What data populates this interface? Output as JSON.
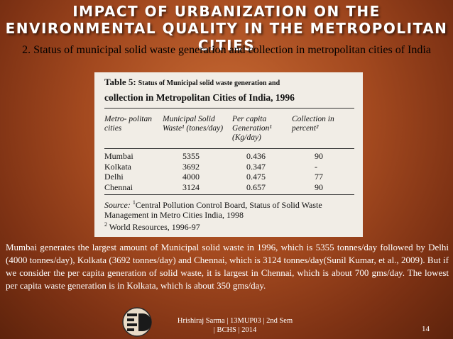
{
  "slide": {
    "title": "IMPACT OF URBANIZATION ON THE ENVIRONMENTAL QUALITY IN THE METROPOLITAN CITIES",
    "subtitle": "2. Status of municipal solid waste generation and collection in metropolitan cities of India"
  },
  "table": {
    "caption_label": "Table 5:",
    "caption_line1_rest": "Status of Municipal solid waste generation and",
    "caption_line2": "collection in Metropolitan Cities of India, 1996",
    "headers": [
      "Metro- politan cities",
      "Municipal Solid Waste¹ (tones/day)",
      "Per capita Generation¹ (Kg/day)",
      "Collection in percent²"
    ],
    "rows": [
      {
        "city": "Mumbai",
        "waste": "5355",
        "per_capita": "0.436",
        "collection": "90"
      },
      {
        "city": "Kolkata",
        "waste": "3692",
        "per_capita": "0.347",
        "collection": "-"
      },
      {
        "city": "Delhi",
        "waste": "4000",
        "per_capita": "0.475",
        "collection": "77"
      },
      {
        "city": "Chennai",
        "waste": "3124",
        "per_capita": "0.657",
        "collection": "90"
      }
    ],
    "source_label": "Source:",
    "source_text": "Central Pollution Control Board, Status of Solid Waste Management in Metro Cities India, 1998",
    "source_note2": "World Resources, 1996-97"
  },
  "paragraph": "Mumbai generates the largest amount of Municipal solid waste in 1996, which is 5355 tonnes/day followed by Delhi (4000 tonnes/day), Kolkata (3692 tonnes/day) and Chennai, which is 3124 tonnes/day(Sunil Kumar, et al., 2009). But if we consider the per capita generation of solid waste, it is largest in Chennai, which is about 700 gms/day. The lowest per capita waste generation is in Kolkata, which is about 350 gms/day.",
  "footer": {
    "line1": "Hrishiraj Sarma | 13MUP03 | 2nd Sem",
    "line2": "| BCHS | 2014",
    "page_number": "14"
  },
  "logo": {
    "icon": "institute-logo-icon"
  }
}
